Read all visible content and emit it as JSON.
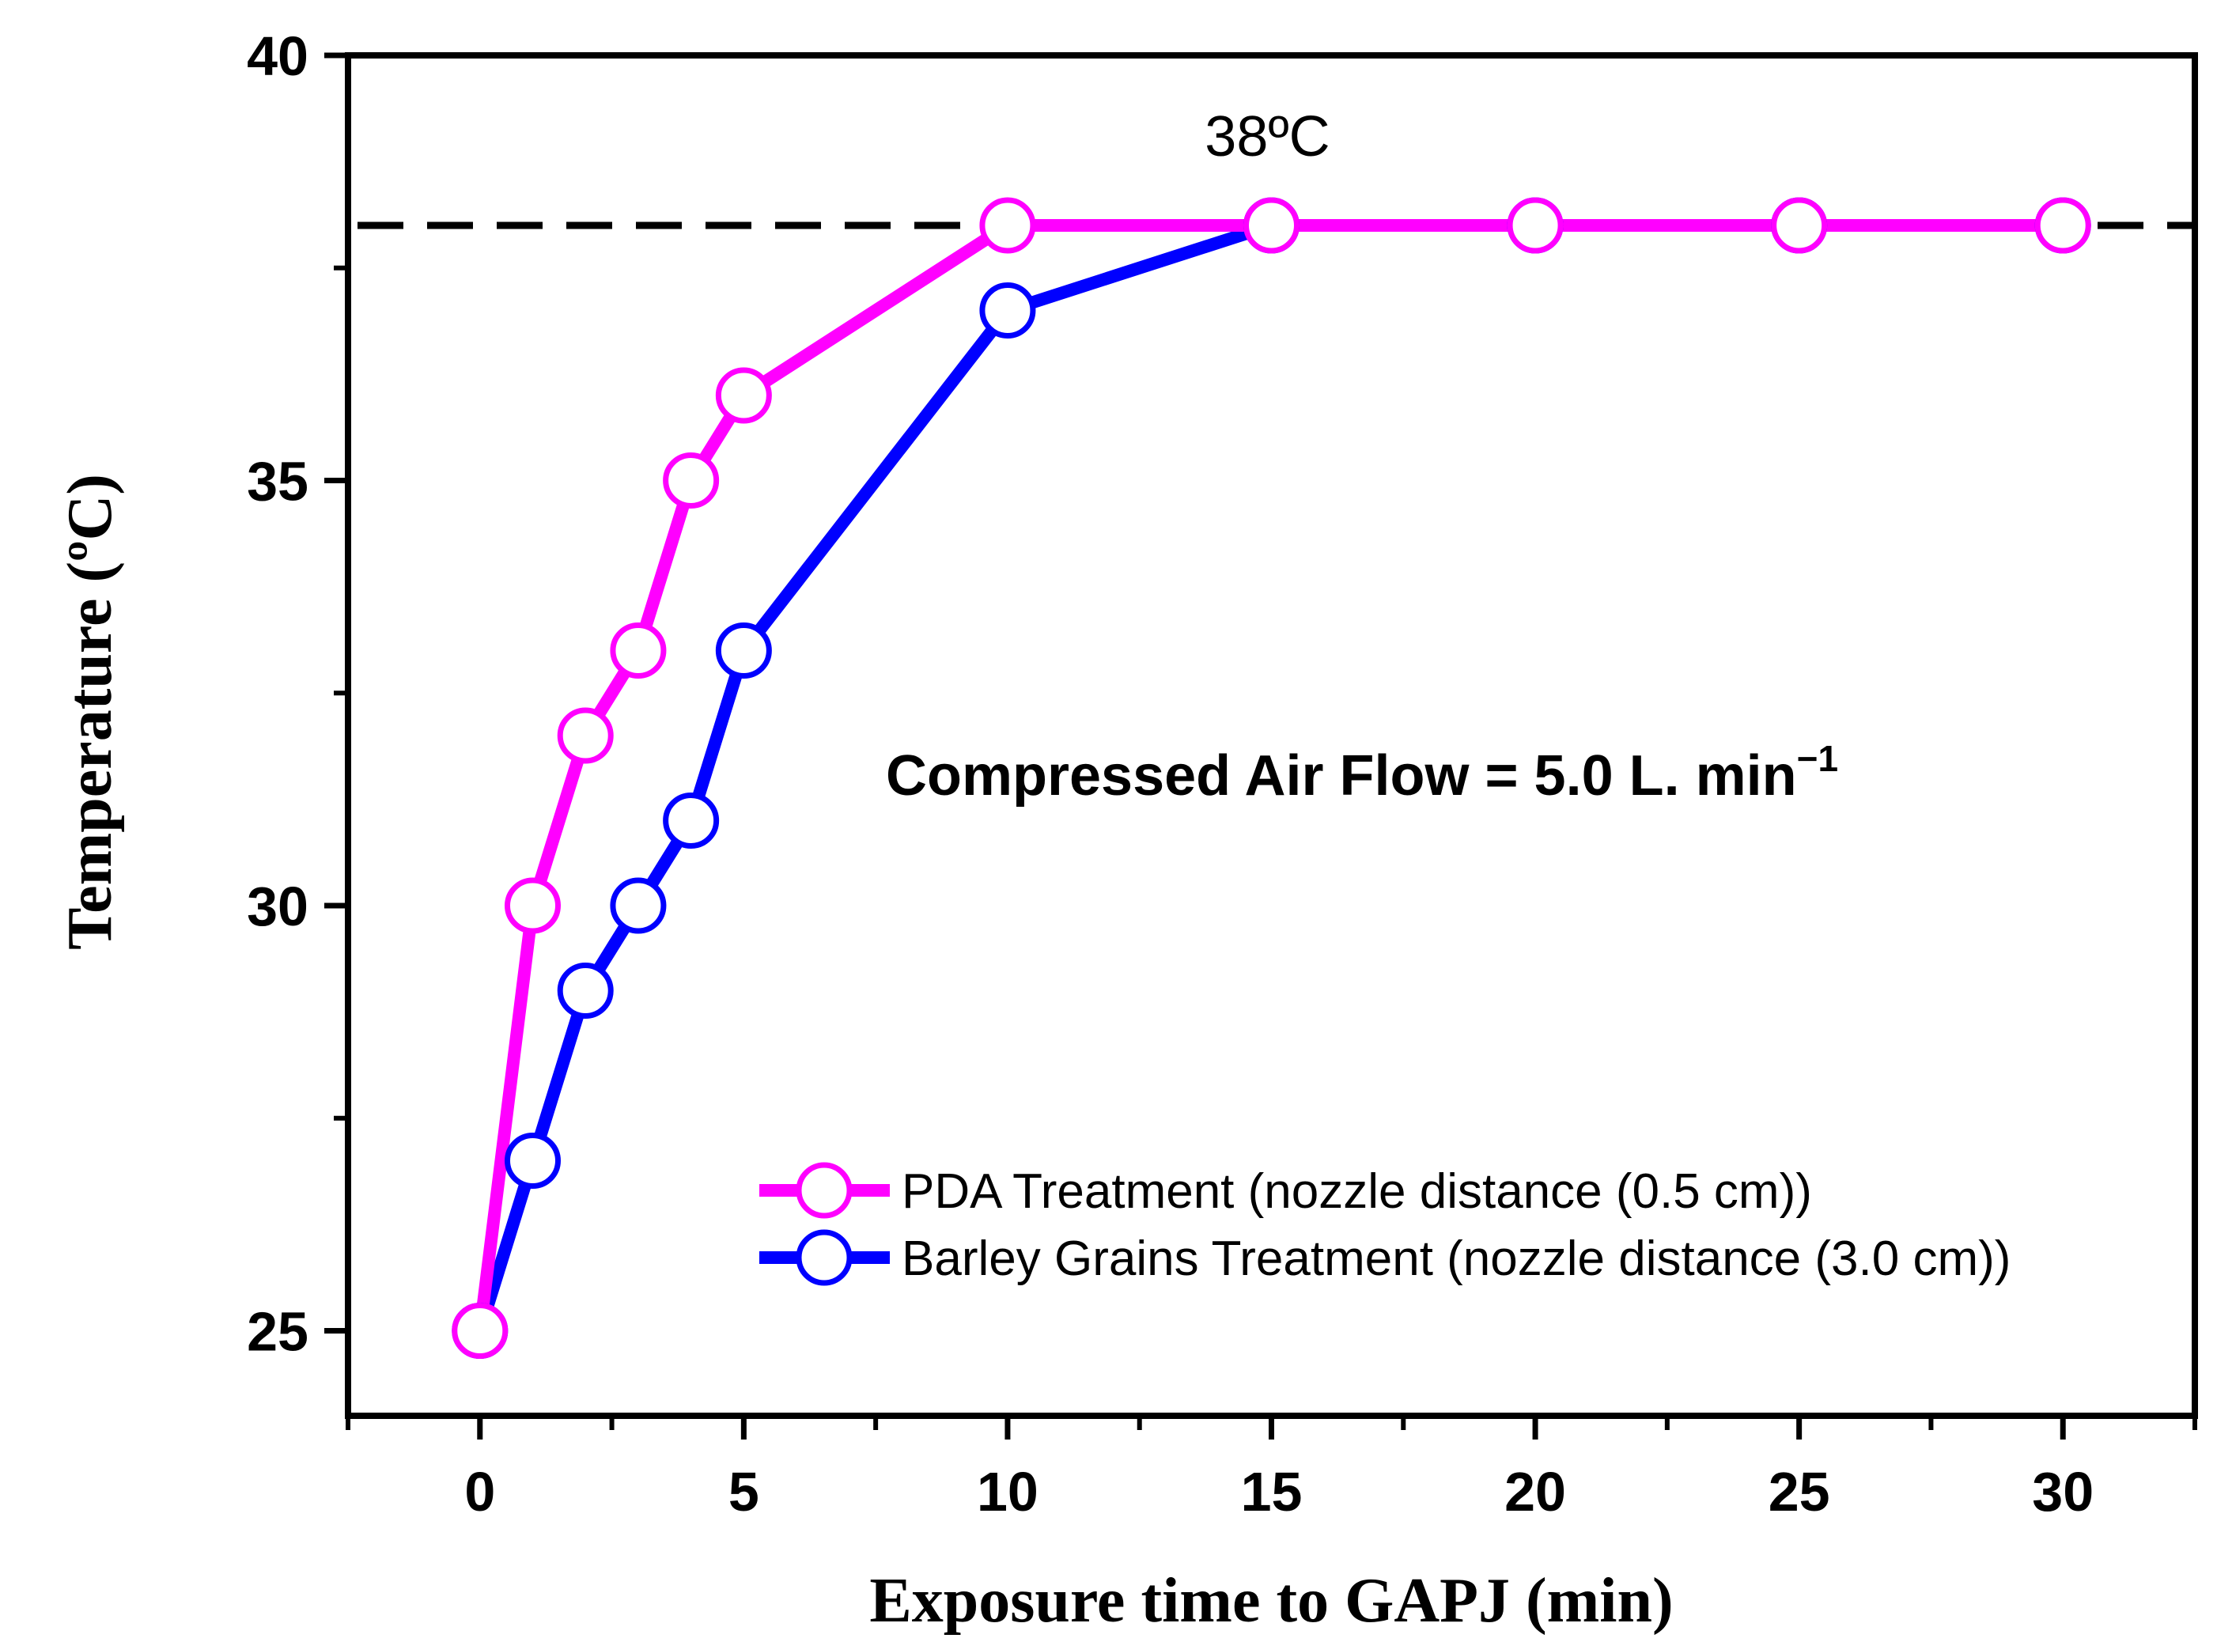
{
  "chart_data": {
    "type": "line",
    "title": "",
    "xlabel": "Exposure time to GAPJ (min)",
    "ylabel": "Temperature (ºC)",
    "xlim": [
      -2.5,
      32.5
    ],
    "ylim": [
      24,
      40
    ],
    "x_ticks": [
      0,
      5,
      10,
      15,
      20,
      25,
      30
    ],
    "x_tick_labels": [
      "0",
      "5",
      "10",
      "15",
      "20",
      "25",
      "30"
    ],
    "y_ticks": [
      25,
      30,
      35,
      40
    ],
    "y_tick_labels": [
      "25",
      "30",
      "35",
      "40"
    ],
    "x_minor_ticks": [
      -2.5,
      2.5,
      7.5,
      12.5,
      17.5,
      22.5,
      27.5,
      32.5
    ],
    "y_minor_ticks": [
      27.5,
      32.5,
      37.5
    ],
    "series": [
      {
        "name": "PDA Treatment (nozzle distance (0.5 cm))",
        "color": "#ff00ff",
        "x": [
          0,
          1,
          2,
          3,
          4,
          5,
          10,
          15,
          20,
          25,
          30
        ],
        "y": [
          25,
          30,
          32,
          33,
          35,
          36,
          38,
          38,
          38,
          38,
          38
        ]
      },
      {
        "name": "Barley Grains Treatment (nozzle distance (3.0 cm))",
        "color": "#0000ff",
        "x": [
          0,
          1,
          2,
          3,
          4,
          5,
          10,
          15,
          20,
          25,
          30
        ],
        "y": [
          25,
          27,
          29,
          30,
          31,
          33,
          37,
          38,
          38,
          38,
          38
        ]
      }
    ],
    "reference_line": {
      "y": 38,
      "label": "38ºC",
      "style": "dashed",
      "color": "#000000"
    },
    "annotation": {
      "text": "Compressed Air Flow = 5.0 L. min",
      "superscript": "−1"
    },
    "legend_position": "lower-right",
    "grid": false
  }
}
